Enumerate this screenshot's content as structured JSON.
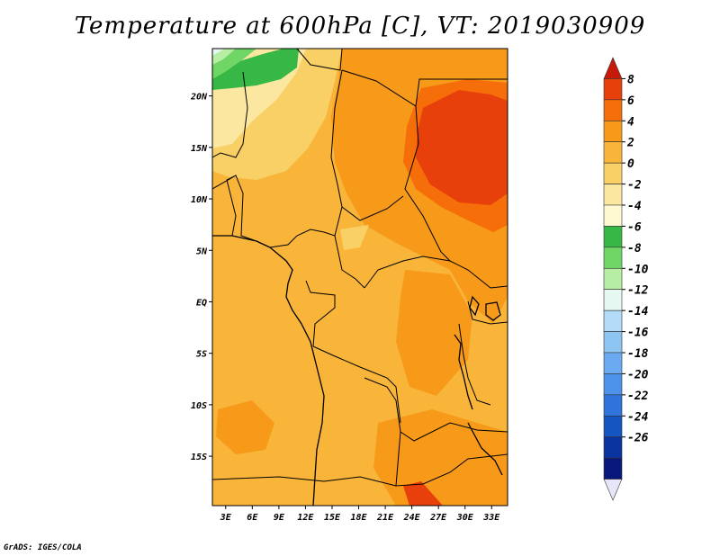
{
  "title": "Temperature at 600hPa [C], VT: 2019030909",
  "credit": "GrADS: IGES/COLA",
  "map": {
    "region": "Central Africa",
    "variable": "Temperature at 600hPa",
    "units": "C",
    "lat_labels": [
      "20N",
      "15N",
      "10N",
      "5N",
      "EQ",
      "5S",
      "10S",
      "15S"
    ],
    "lat_values": [
      20,
      15,
      10,
      5,
      0,
      -5,
      -10,
      -15
    ],
    "lon_labels": [
      "3E",
      "6E",
      "9E",
      "12E",
      "15E",
      "18E",
      "21E",
      "24E",
      "27E",
      "30E",
      "33E"
    ],
    "lon_values": [
      3,
      6,
      9,
      12,
      15,
      18,
      21,
      24,
      27,
      30,
      33
    ],
    "lon_range": [
      1.5,
      34.8
    ],
    "lat_range": [
      -19.8,
      24.6
    ],
    "colorbar": {
      "labels": [
        "8",
        "6",
        "4",
        "2",
        "0",
        "-2",
        "-4",
        "-6",
        "-8",
        "-10",
        "-12",
        "-14",
        "-16",
        "-18",
        "-20",
        "-22",
        "-24",
        "-26"
      ],
      "colors": [
        "#c81a0a",
        "#e8400a",
        "#f56e0a",
        "#f79a1a",
        "#f8b53a",
        "#f9d065",
        "#fbe7a0",
        "#fdf8d0",
        "#37b846",
        "#6fd665",
        "#b6eea4",
        "#e6f8f2",
        "#b2dcf7",
        "#8cc4f2",
        "#6aaaf0",
        "#4c92ea",
        "#2f73dc",
        "#1555c2",
        "#0a35a0",
        "#07177a",
        "#e6e6fa"
      ]
    }
  }
}
